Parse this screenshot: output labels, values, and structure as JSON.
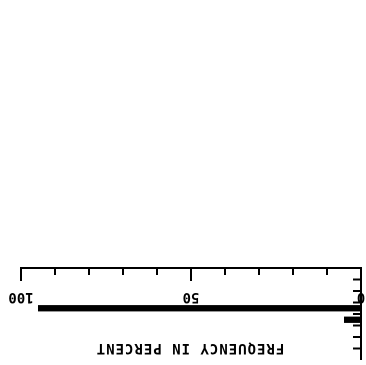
{
  "chart_data": {
    "type": "bar",
    "orientation": "horizontal",
    "rotated": "180deg",
    "xlabel": "FREQUENCY IN PERCENT",
    "ylabel": "",
    "title": "",
    "xlim": [
      0,
      100
    ],
    "x_ticks": [
      0,
      50,
      100
    ],
    "x_tick_labels": [
      "0",
      "50",
      "100"
    ],
    "minor_tick_step": 10,
    "category_tick_count": 7,
    "bar_color": "#000000",
    "series": [
      {
        "values": [
          0,
          0,
          0,
          5,
          95,
          0,
          0,
          0
        ]
      }
    ],
    "grid": false,
    "legend": "none"
  }
}
